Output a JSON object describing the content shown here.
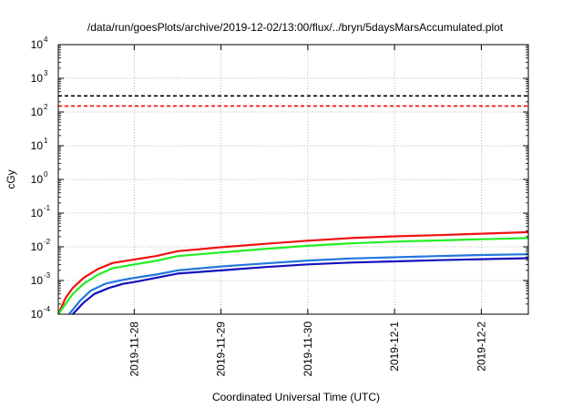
{
  "chart_data": {
    "type": "line",
    "title": "/data/run/goesPlots/archive/2019-12-02/13:00/flux/../bryn/5daysMarsAccumulated.plot",
    "xlabel": "Coordinated Universal Time (UTC)",
    "ylabel": "cGy",
    "y_scale": "log",
    "ylim": [
      0.0001,
      10000
    ],
    "y_ticks": [
      {
        "base": "10",
        "exp": "-4",
        "value": 0.0001
      },
      {
        "base": "10",
        "exp": "-3",
        "value": 0.001
      },
      {
        "base": "10",
        "exp": "-2",
        "value": 0.01
      },
      {
        "base": "10",
        "exp": "-1",
        "value": 0.1
      },
      {
        "base": "10",
        "exp": "0",
        "value": 1
      },
      {
        "base": "10",
        "exp": "1",
        "value": 10
      },
      {
        "base": "10",
        "exp": "2",
        "value": 100
      },
      {
        "base": "10",
        "exp": "3",
        "value": 1000
      },
      {
        "base": "10",
        "exp": "4",
        "value": 10000
      }
    ],
    "xlim": [
      "2019-11-27 03:00",
      "2019-12-02 13:00"
    ],
    "x_ticks": [
      "2019-11-28",
      "2019-11-29",
      "2019-11-30",
      "2019-12-1",
      "2019-12-2"
    ],
    "grid": true,
    "reference_lines": [
      {
        "value": 300,
        "color": "#000000",
        "style": "dashed"
      },
      {
        "value": 150,
        "color": "#ff0000",
        "style": "dashed"
      }
    ],
    "series": [
      {
        "color": "#ee1111",
        "x": [
          "2019-11-27 03:00",
          "2019-11-27 05:00",
          "2019-11-27 07:00",
          "2019-11-27 10:00",
          "2019-11-27 14:00",
          "2019-11-27 18:00",
          "2019-11-28 00:00",
          "2019-11-28 06:00",
          "2019-11-28 12:00",
          "2019-11-29 00:00",
          "2019-11-29 12:00",
          "2019-11-30 00:00",
          "2019-11-30 12:00",
          "2019-12-01 00:00",
          "2019-12-01 12:00",
          "2019-12-02 00:00",
          "2019-12-02 13:00"
        ],
        "y": [
          9e-05,
          0.0003,
          0.0006,
          0.0012,
          0.0022,
          0.0033,
          0.0042,
          0.0053,
          0.0074,
          0.0097,
          0.0122,
          0.0152,
          0.0182,
          0.0205,
          0.0222,
          0.0245,
          0.0272
        ]
      },
      {
        "color": "#22ee22",
        "x": [
          "2019-11-27 03:00",
          "2019-11-27 05:00",
          "2019-11-27 07:00",
          "2019-11-27 10:00",
          "2019-11-27 14:00",
          "2019-11-27 18:00",
          "2019-11-28 00:00",
          "2019-11-28 06:00",
          "2019-11-28 12:00",
          "2019-11-29 00:00",
          "2019-11-29 12:00",
          "2019-11-30 00:00",
          "2019-11-30 12:00",
          "2019-12-01 00:00",
          "2019-12-01 12:00",
          "2019-12-02 00:00",
          "2019-12-02 13:00"
        ],
        "y": [
          7e-05,
          0.0002,
          0.0004,
          0.0008,
          0.0015,
          0.0023,
          0.003,
          0.0038,
          0.0053,
          0.0068,
          0.0086,
          0.0107,
          0.0127,
          0.0143,
          0.0155,
          0.0168,
          0.0182
        ]
      },
      {
        "color": "#2277dd",
        "x": [
          "2019-11-27 06:00",
          "2019-11-27 09:00",
          "2019-11-27 12:00",
          "2019-11-27 16:00",
          "2019-11-27 20:00",
          "2019-11-28 00:00",
          "2019-11-28 06:00",
          "2019-11-28 12:00",
          "2019-11-29 00:00",
          "2019-11-29 12:00",
          "2019-11-30 00:00",
          "2019-11-30 12:00",
          "2019-12-01 00:00",
          "2019-12-01 12:00",
          "2019-12-02 00:00",
          "2019-12-02 13:00"
        ],
        "y": [
          0.0001,
          0.00025,
          0.0005,
          0.0008,
          0.001,
          0.0012,
          0.0015,
          0.002,
          0.0026,
          0.0032,
          0.0039,
          0.0045,
          0.0049,
          0.0053,
          0.0057,
          0.006
        ]
      },
      {
        "color": "#1111bb",
        "x": [
          "2019-11-27 07:00",
          "2019-11-27 10:00",
          "2019-11-27 13:00",
          "2019-11-27 17:00",
          "2019-11-27 21:00",
          "2019-11-28 00:00",
          "2019-11-28 06:00",
          "2019-11-28 12:00",
          "2019-11-29 00:00",
          "2019-11-29 12:00",
          "2019-11-30 00:00",
          "2019-11-30 12:00",
          "2019-12-01 00:00",
          "2019-12-01 12:00",
          "2019-12-02 00:00",
          "2019-12-02 13:00"
        ],
        "y": [
          0.0001,
          0.00022,
          0.0004,
          0.0006,
          0.0008,
          0.0009,
          0.0012,
          0.0016,
          0.002,
          0.0025,
          0.003,
          0.0034,
          0.0037,
          0.004,
          0.0043,
          0.0046
        ]
      }
    ]
  }
}
